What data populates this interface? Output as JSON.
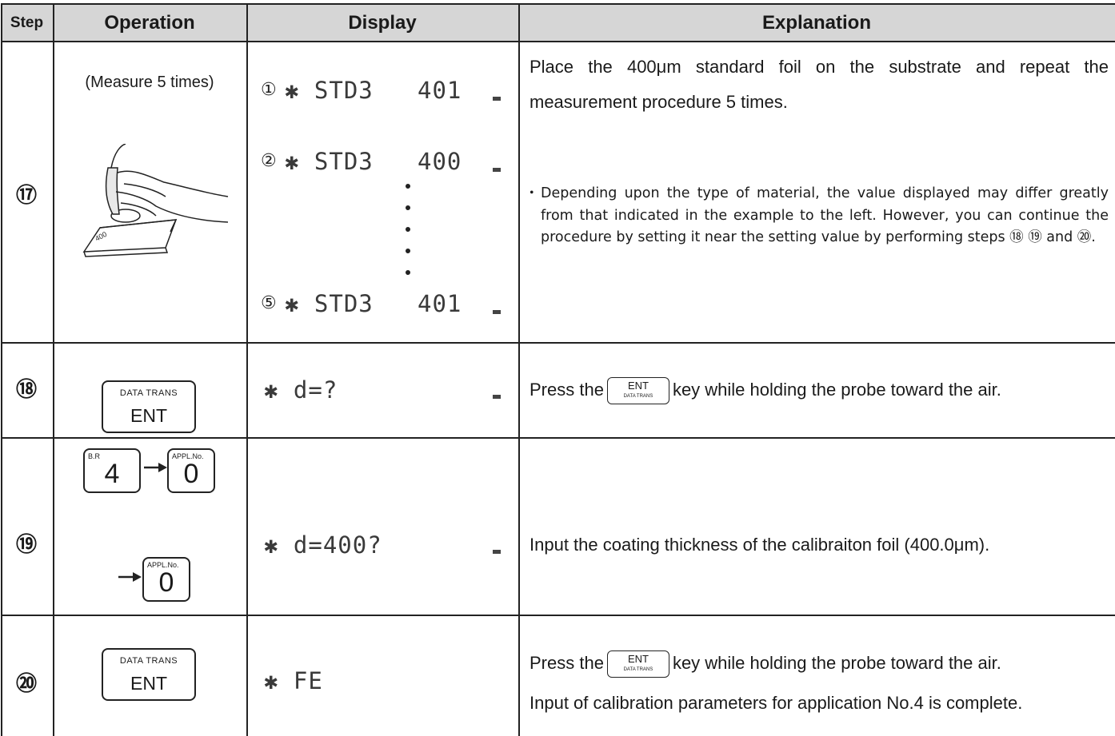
{
  "header": {
    "columns": [
      "Step",
      "Operation",
      "Display",
      "Explanation"
    ]
  },
  "rows": [
    {
      "step": "⑰",
      "operation": {
        "caption": "(Measure 5 times)",
        "foil_label": "400"
      },
      "display": [
        {
          "marker": "①",
          "text": "✱ STD3",
          "value": "401"
        },
        {
          "marker": "②",
          "text": "✱ STD3",
          "value": "400"
        },
        {
          "marker": "⑤",
          "text": "✱ STD3",
          "value": "401"
        }
      ],
      "explanation": {
        "text": "Place the 400μm standard foil on the substrate and repeat the measurement procedure 5 times.",
        "note_bullet": "・",
        "note": "Depending upon the type of material, the value displayed may differ greatly from that indicated in the example to the left. However, you can continue the procedure by setting it near the setting value by performing steps ⑱ ⑲ and ⑳."
      }
    },
    {
      "step": "⑱",
      "operation": {
        "keys": [
          {
            "top": "DATA TRANS",
            "main": "ENT"
          }
        ]
      },
      "display": [
        {
          "text": "✱ d=?"
        }
      ],
      "explanation": {
        "before": "Press the",
        "key": {
          "top": "DATA TRANS",
          "main": "ENT"
        },
        "after": "key while holding the probe toward the air."
      }
    },
    {
      "step": "⑲",
      "operation": {
        "keys": [
          {
            "top": "B.R",
            "main": "4"
          },
          {
            "top": "APPL.No.",
            "main": "0"
          },
          {
            "top": "APPL.No.",
            "main": "0"
          }
        ]
      },
      "display": [
        {
          "text": "✱ d=400?"
        }
      ],
      "explanation": {
        "text": "Input the coating thickness of the calibraiton foil (400.0μm)."
      }
    },
    {
      "step": "⑳",
      "operation": {
        "keys": [
          {
            "top": "DATA TRANS",
            "main": "ENT"
          }
        ]
      },
      "display": [
        {
          "text": "✱ FE"
        }
      ],
      "explanation": {
        "before": "Press the",
        "key": {
          "top": "DATA TRANS",
          "main": "ENT"
        },
        "after": "key while holding the probe toward the air.",
        "line2": "Input of calibration parameters for application No.4 is complete."
      }
    }
  ]
}
